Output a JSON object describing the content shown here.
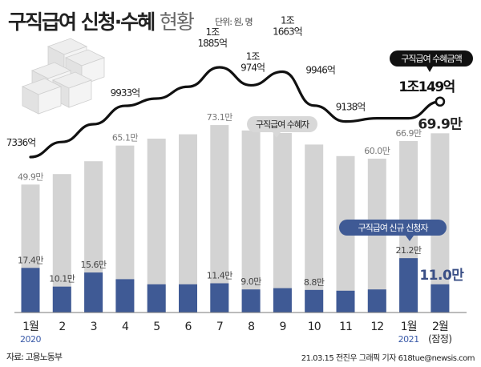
{
  "title": "구직급여 신청·수혜",
  "title_suffix": "현황",
  "unit": "단위: 원, 명",
  "source": "자료: 고용노동부",
  "credit": "21.03.15 전진우 그래픽 기자 618tue@newsis.com",
  "colors": {
    "recipient_bar": "#d3d3d3",
    "applicant_bar": "#3f5a95",
    "line": "#111111",
    "highlight_text": "#3a4f86",
    "year_text": "#3a5aa8"
  },
  "chart_data": {
    "type": "bar",
    "categories": [
      "1월",
      "2",
      "3",
      "4",
      "5",
      "6",
      "7",
      "8",
      "9",
      "10",
      "11",
      "12",
      "1월",
      "2월"
    ],
    "year_labels": [
      "2020",
      "",
      "",
      "",
      "",
      "",
      "",
      "",
      "",
      "",
      "",
      "",
      "2021",
      "(잠정)"
    ],
    "series": [
      {
        "name": "구직급여 수혜자",
        "type": "bar",
        "values": [
          49.9,
          54.0,
          59.0,
          65.1,
          67.8,
          69.5,
          73.1,
          71.0,
          70.0,
          65.5,
          61.0,
          60.0,
          66.9,
          69.9
        ],
        "labels": [
          "49.9만",
          "",
          "",
          "65.1만",
          "",
          "",
          "73.1만",
          "",
          "",
          "",
          "",
          "60.0만",
          "66.9만",
          "69.9만"
        ]
      },
      {
        "name": "구직급여 신규 신청자",
        "type": "bar",
        "values": [
          17.4,
          10.1,
          15.6,
          13.0,
          11.0,
          11.0,
          11.4,
          9.0,
          9.5,
          8.8,
          8.5,
          9.0,
          21.2,
          11.0
        ],
        "labels": [
          "17.4만",
          "10.1만",
          "15.6만",
          "",
          "",
          "",
          "11.4만",
          "9.0만",
          "",
          "8.8만",
          "",
          "",
          "21.2만",
          "11.0만"
        ]
      },
      {
        "name": "구직급여 수혜금액",
        "type": "line",
        "values": [
          7336,
          8100,
          9000,
          9933,
          10300,
          10900,
          11885,
          10974,
          11663,
          9946,
          9138,
          9300,
          9300,
          10149
        ],
        "labels": [
          "7336억",
          "",
          "",
          "9933억",
          "",
          "",
          "1조\n1885억",
          "1조\n974억",
          "1조\n1663억",
          "9946억",
          "9138억",
          "",
          "",
          "1조149억"
        ]
      }
    ],
    "callouts": {
      "recipients": "구직급여 수혜자",
      "applicants": "구직급여 신규 신청자",
      "amount": "구직급여 수혜금액"
    }
  }
}
